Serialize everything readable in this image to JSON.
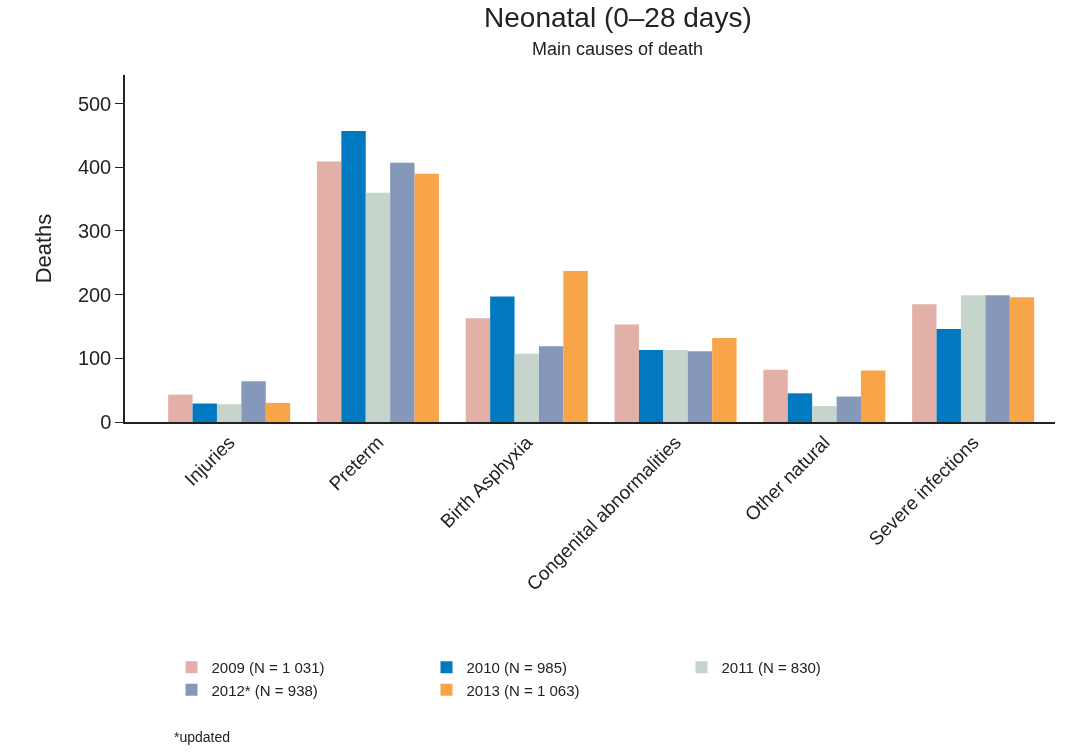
{
  "chart_data": {
    "type": "bar",
    "title": "Neonatal (0–28 days)",
    "subtitle": "Main causes of death",
    "ylabel": "Deaths",
    "categories": [
      "Injuries",
      "Preterm",
      "Birth Asphyxia",
      "Congenital abnormalities",
      "Other natural",
      "Severe infections"
    ],
    "series": [
      {
        "name": "2009 (N = 1 031)",
        "color": "#e2b0a6",
        "values": [
          43,
          409,
          163,
          153,
          82,
          185
        ]
      },
      {
        "name": "2010 (N = 985)",
        "color": "#0079c1",
        "values": [
          29,
          457,
          197,
          113,
          45,
          146
        ]
      },
      {
        "name": "2011 (N = 830)",
        "color": "#c5d5cb",
        "values": [
          28,
          360,
          107,
          113,
          25,
          199
        ]
      },
      {
        "name": "2012* (N = 938)",
        "color": "#8598b9",
        "values": [
          64,
          407,
          119,
          111,
          40,
          199
        ]
      },
      {
        "name": "2013 (N = 1 063)",
        "color": "#f8a54a",
        "values": [
          30,
          390,
          237,
          132,
          81,
          196
        ]
      }
    ],
    "ylim": [
      0,
      545
    ],
    "yticks": [
      0,
      100,
      200,
      300,
      400,
      500
    ],
    "legend": "bottom",
    "annotations": [
      "*updated"
    ]
  }
}
